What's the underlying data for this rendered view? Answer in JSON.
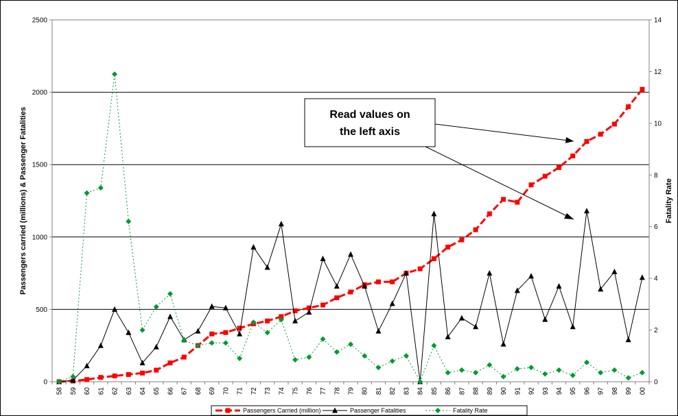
{
  "chart_data": {
    "type": "line",
    "categories": [
      "58",
      "59",
      "60",
      "61",
      "62",
      "63",
      "64",
      "65",
      "66",
      "67",
      "68",
      "69",
      "70",
      "71",
      "72",
      "73",
      "74",
      "75",
      "76",
      "77",
      "78",
      "79",
      "80",
      "81",
      "82",
      "83",
      "84",
      "85",
      "86",
      "87",
      "88",
      "89",
      "90",
      "91",
      "92",
      "93",
      "94",
      "95",
      "96",
      "97",
      "98",
      "99",
      "00"
    ],
    "series": [
      {
        "name": "Passengers Carried (million)",
        "axis": "left",
        "color": "#ff0000",
        "values": [
          0,
          5,
          15,
          30,
          40,
          50,
          60,
          80,
          130,
          170,
          250,
          330,
          340,
          370,
          400,
          420,
          450,
          490,
          510,
          530,
          580,
          620,
          670,
          690,
          690,
          750,
          780,
          850,
          930,
          980,
          1050,
          1160,
          1260,
          1240,
          1360,
          1420,
          1480,
          1560,
          1660,
          1710,
          1780,
          1900,
          2020
        ]
      },
      {
        "name": "Passenger Fatalities",
        "axis": "left",
        "color": "#000000",
        "values": [
          0,
          10,
          110,
          250,
          500,
          340,
          130,
          240,
          450,
          290,
          350,
          520,
          510,
          330,
          930,
          790,
          1090,
          420,
          480,
          850,
          660,
          880,
          660,
          350,
          540,
          750,
          0,
          1160,
          310,
          440,
          380,
          750,
          260,
          630,
          730,
          430,
          660,
          380,
          1180,
          640,
          760,
          290,
          720
        ]
      },
      {
        "name": "Fatality Rate",
        "axis": "right",
        "color": "#009933",
        "values": [
          0,
          0.2,
          7.3,
          7.5,
          11.9,
          6.2,
          2.0,
          2.9,
          3.4,
          1.6,
          1.4,
          1.5,
          1.5,
          0.9,
          2.3,
          1.9,
          2.4,
          0.85,
          0.95,
          1.65,
          1.15,
          1.45,
          1.0,
          0.55,
          0.8,
          1.0,
          0,
          1.4,
          0.35,
          0.45,
          0.35,
          0.65,
          0.2,
          0.5,
          0.55,
          0.3,
          0.45,
          0.25,
          0.75,
          0.35,
          0.45,
          0.15,
          0.35
        ]
      }
    ],
    "y_left": {
      "label": "Passengers carried (millions) & Passenger Fatalities",
      "range": [
        0,
        2500
      ],
      "ticks": [
        "0",
        "500",
        "1000",
        "1500",
        "2000",
        "2500"
      ]
    },
    "y_right": {
      "label": "Fatality Rate",
      "range": [
        0,
        14
      ],
      "ticks": [
        "0",
        "2",
        "4",
        "6",
        "8",
        "10",
        "12",
        "14"
      ]
    },
    "grid": "horizontal major lines on left axis",
    "legend_position": "bottom",
    "annotation": {
      "line1": "Read values on",
      "line2": "the left axis"
    }
  }
}
